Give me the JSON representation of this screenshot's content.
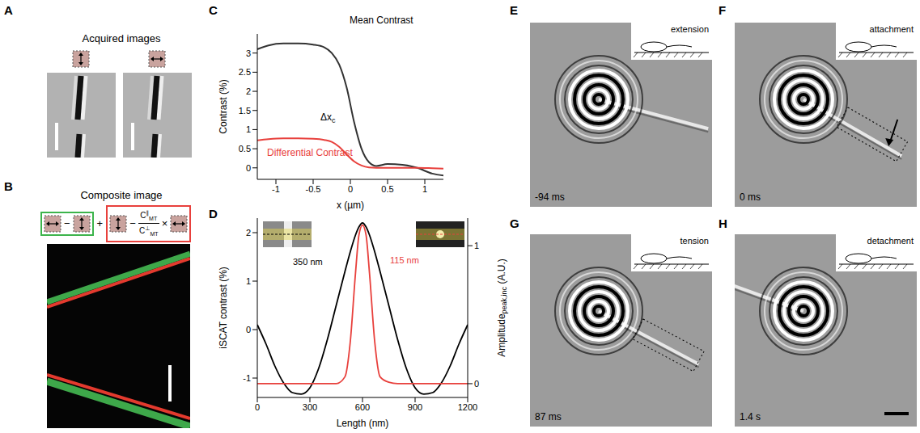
{
  "panels": {
    "A": {
      "letter": "A",
      "title": "Acquired images"
    },
    "B": {
      "letter": "B",
      "title": "Composite image",
      "formula": {
        "minus": "−",
        "plus": "+",
        "times": "×",
        "ratio": {
          "symbol": "C",
          "sub": "MT",
          "top_sup": "∥",
          "bottom_sup": "⊥"
        }
      }
    },
    "E": {
      "letter": "E",
      "inset": "extension",
      "time": "-94 ms"
    },
    "F": {
      "letter": "F",
      "inset": "attachment",
      "time": "0 ms"
    },
    "G": {
      "letter": "G",
      "inset": "tension",
      "time": "87 ms"
    },
    "H": {
      "letter": "H",
      "inset": "detachment",
      "time": "1.4 s"
    }
  },
  "chart_data": [
    {
      "panel": "C",
      "type": "line",
      "x_label": "x (µm)",
      "y_label": "Contrast (%)",
      "xlim": [
        -1.25,
        1.25
      ],
      "xticks": [
        -1,
        -0.5,
        0,
        0.5,
        1
      ],
      "ylim": [
        -0.3,
        3.5
      ],
      "yticks": [
        0,
        0.5,
        1,
        1.5,
        2,
        2.5,
        3
      ],
      "x": [
        -1.25,
        -1.1,
        -0.9,
        -0.7,
        -0.5,
        -0.35,
        -0.25,
        -0.15,
        -0.05,
        0.05,
        0.15,
        0.25,
        0.35,
        0.5,
        0.7,
        0.9,
        1.1,
        1.25
      ],
      "series": [
        {
          "name": "Mean Contrast",
          "color": "#333333",
          "values": [
            3.1,
            3.2,
            3.25,
            3.25,
            3.22,
            3.15,
            3.0,
            2.7,
            2.1,
            1.2,
            0.5,
            0.15,
            0.05,
            0.1,
            0.08,
            0,
            -0.15,
            -0.2
          ]
        },
        {
          "name": "Differential Contrast",
          "color": "#e8403c",
          "values": [
            0.72,
            0.75,
            0.77,
            0.77,
            0.76,
            0.73,
            0.68,
            0.55,
            0.35,
            0.17,
            0.06,
            0.01,
            0,
            0,
            0,
            0,
            -0.01,
            -0.02
          ]
        }
      ],
      "annotations": [
        {
          "text": "Δx",
          "subscript": "c"
        }
      ]
    },
    {
      "panel": "D",
      "type": "line",
      "x_label": "Length (nm)",
      "y_label": "iSCAT contrast (%)",
      "y2_label": {
        "text": "Amplitude",
        "subscript": "peak,inc",
        "suffix": "(A.U.)"
      },
      "xlim": [
        0,
        1200
      ],
      "xticks": [
        0,
        300,
        600,
        900,
        1200
      ],
      "ylim": [
        -1.4,
        2.3
      ],
      "yticks": [
        -1,
        0,
        1,
        2
      ],
      "y2lim": [
        -0.1,
        1.2
      ],
      "y2ticks": [
        0,
        1
      ],
      "x": [
        0,
        50,
        100,
        150,
        200,
        250,
        300,
        350,
        400,
        450,
        500,
        530,
        560,
        580,
        600,
        620,
        640,
        670,
        700,
        750,
        800,
        850,
        900,
        950,
        1000,
        1050,
        1100,
        1150,
        1200
      ],
      "series": [
        {
          "color": "#000000",
          "values": [
            0.1,
            -0.3,
            -0.75,
            -1.1,
            -1.3,
            -1.33,
            -1.2,
            -0.8,
            -0.2,
            0.5,
            1.2,
            1.6,
            1.95,
            2.12,
            2.2,
            2.12,
            1.95,
            1.6,
            1.2,
            0.5,
            -0.2,
            -0.8,
            -1.2,
            -1.33,
            -1.3,
            -1.1,
            -0.75,
            -0.3,
            0.1
          ]
        },
        {
          "color": "#e8403c",
          "axis": "y2",
          "values": [
            0,
            0,
            0,
            0,
            0,
            0,
            0,
            0,
            0,
            0,
            0.05,
            0.3,
            0.8,
            1.08,
            1.15,
            1.08,
            0.8,
            0.3,
            0.05,
            0.01,
            0,
            0,
            0,
            0,
            0,
            0,
            0,
            0,
            0
          ]
        }
      ],
      "annotations": [
        "350 nm",
        "115 nm"
      ]
    }
  ]
}
